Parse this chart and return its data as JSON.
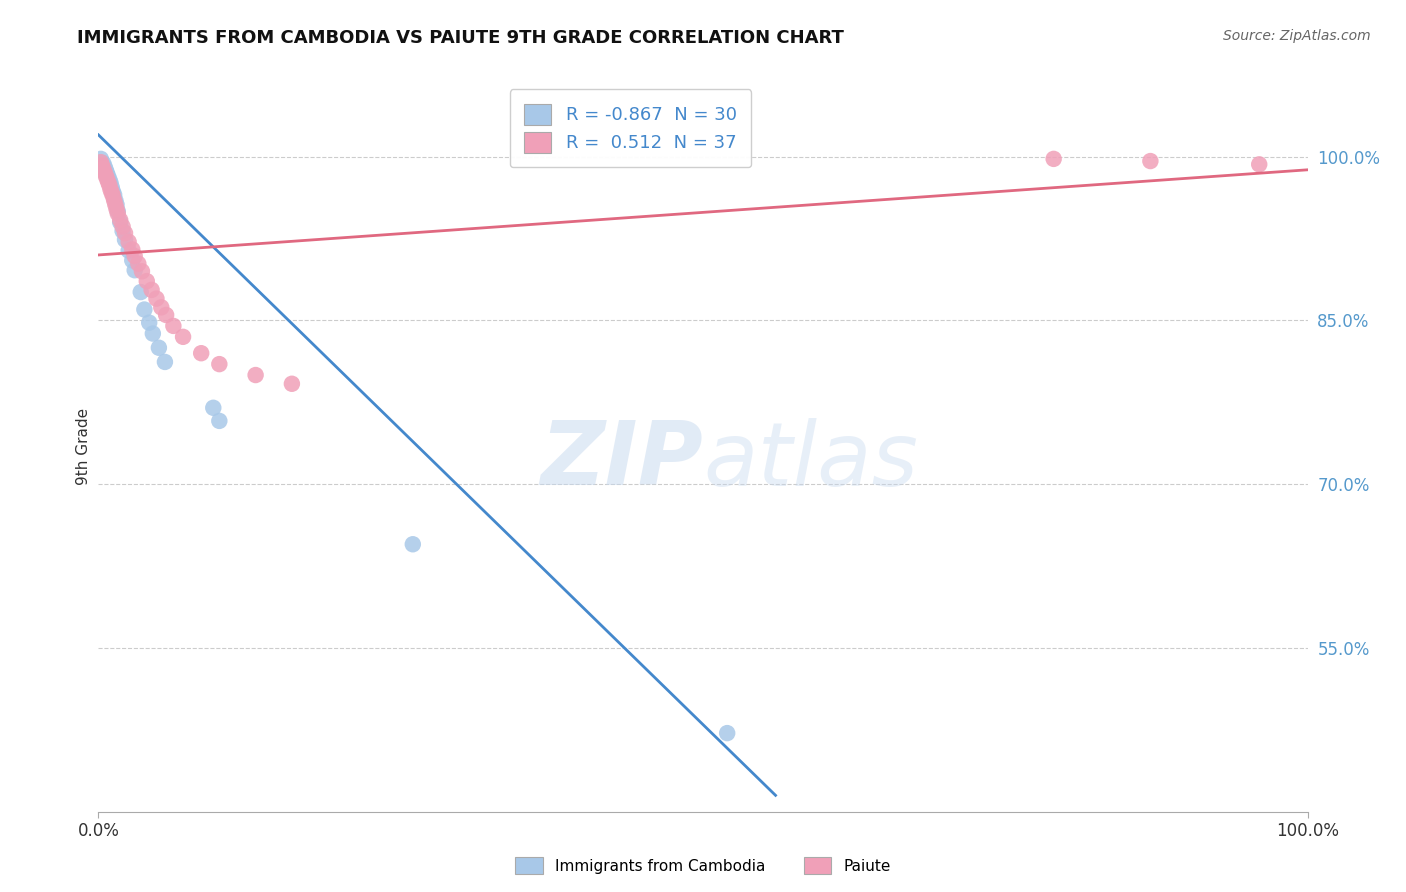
{
  "title": "IMMIGRANTS FROM CAMBODIA VS PAIUTE 9TH GRADE CORRELATION CHART",
  "source_text": "Source: ZipAtlas.com",
  "ylabel": "9th Grade",
  "watermark_zip": "ZIP",
  "watermark_atlas": "atlas",
  "xlim": [
    0.0,
    1.0
  ],
  "ylim": [
    0.4,
    1.07
  ],
  "ytick_vals": [
    0.55,
    0.7,
    0.85,
    1.0
  ],
  "ytick_labels": [
    "55.0%",
    "70.0%",
    "85.0%",
    "100.0%"
  ],
  "xtick_vals": [
    0.0,
    1.0
  ],
  "xtick_labels": [
    "0.0%",
    "100.0%"
  ],
  "legend_label1": "Immigrants from Cambodia",
  "legend_label2": "Paiute",
  "blue_r": "-0.867",
  "blue_n": "30",
  "pink_r": "0.512",
  "pink_n": "37",
  "blue_scatter_color": "#a8c8e8",
  "pink_scatter_color": "#f0a0b8",
  "blue_line_color": "#4488cc",
  "pink_line_color": "#e06880",
  "grid_color": "#cccccc",
  "bg_color": "#ffffff",
  "blue_scatter_x": [
    0.002,
    0.004,
    0.005,
    0.006,
    0.007,
    0.008,
    0.009,
    0.01,
    0.011,
    0.012,
    0.013,
    0.014,
    0.015,
    0.016,
    0.018,
    0.02,
    0.022,
    0.025,
    0.028,
    0.03,
    0.035,
    0.038,
    0.042,
    0.045,
    0.05,
    0.055,
    0.095,
    0.1,
    0.26,
    0.52
  ],
  "blue_scatter_y": [
    0.998,
    0.994,
    0.991,
    0.988,
    0.985,
    0.982,
    0.979,
    0.976,
    0.972,
    0.968,
    0.965,
    0.96,
    0.956,
    0.95,
    0.94,
    0.932,
    0.924,
    0.914,
    0.905,
    0.896,
    0.876,
    0.86,
    0.848,
    0.838,
    0.825,
    0.812,
    0.77,
    0.758,
    0.645,
    0.472
  ],
  "pink_scatter_x": [
    0.002,
    0.003,
    0.004,
    0.005,
    0.006,
    0.007,
    0.008,
    0.009,
    0.01,
    0.011,
    0.012,
    0.013,
    0.014,
    0.015,
    0.016,
    0.018,
    0.02,
    0.022,
    0.025,
    0.028,
    0.03,
    0.033,
    0.036,
    0.04,
    0.044,
    0.048,
    0.052,
    0.056,
    0.062,
    0.07,
    0.085,
    0.1,
    0.13,
    0.16,
    0.79,
    0.87,
    0.96
  ],
  "pink_scatter_y": [
    0.995,
    0.992,
    0.989,
    0.986,
    0.983,
    0.98,
    0.977,
    0.974,
    0.97,
    0.967,
    0.964,
    0.96,
    0.956,
    0.952,
    0.948,
    0.942,
    0.936,
    0.93,
    0.922,
    0.915,
    0.909,
    0.902,
    0.895,
    0.886,
    0.878,
    0.87,
    0.862,
    0.855,
    0.845,
    0.835,
    0.82,
    0.81,
    0.8,
    0.792,
    0.998,
    0.996,
    0.993
  ],
  "blue_line_x": [
    0.0,
    0.56
  ],
  "blue_line_y": [
    1.02,
    0.415
  ],
  "pink_line_x": [
    0.0,
    1.0
  ],
  "pink_line_y": [
    0.91,
    0.988
  ]
}
